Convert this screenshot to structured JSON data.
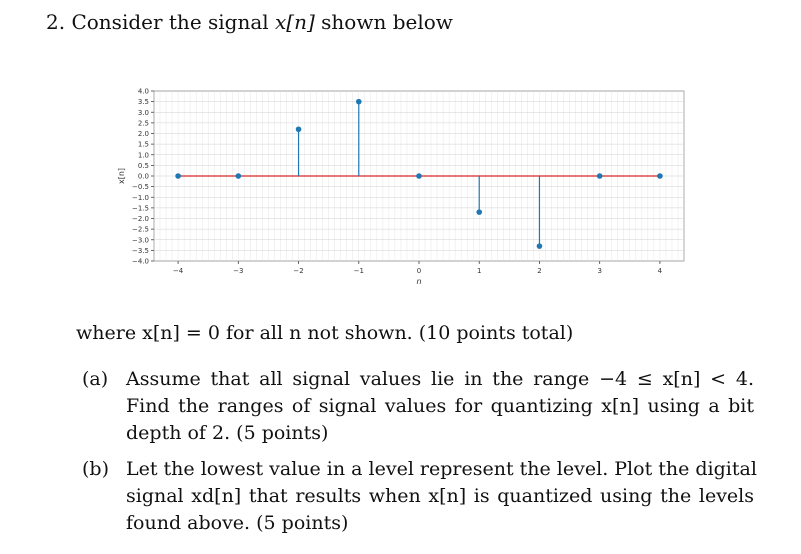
{
  "problem": {
    "number": "2.",
    "intro_before": "Consider the signal",
    "signal_symbol": "x[n]",
    "intro_after": "shown below"
  },
  "chart_data": {
    "type": "stem",
    "x": [
      -4,
      -3,
      -2,
      -1,
      0,
      1,
      2,
      3,
      4
    ],
    "y": [
      0,
      0,
      2.2,
      3.5,
      0,
      -1.7,
      -3.3,
      0,
      0
    ],
    "xlabel": "n",
    "ylabel": "x[n]",
    "xlim": [
      -4.4,
      4.4
    ],
    "ylim": [
      -4.0,
      4.0
    ],
    "xticks": [
      "−4",
      "−3",
      "−2",
      "−1",
      "0",
      "1",
      "2",
      "3",
      "4"
    ],
    "yticks": [
      "4.0",
      "3.5",
      "3.0",
      "2.5",
      "2.0",
      "1.5",
      "1.0",
      "0.5",
      "0.0",
      "−0.5",
      "−1.0",
      "−1.5",
      "−2.0",
      "−2.5",
      "−3.0",
      "−3.5",
      "−4.0"
    ],
    "grid": true,
    "stem_color": "#1f77b4",
    "baseline_color": "#d62728"
  },
  "note": "where x[n] = 0 for all n not shown. (10 points total)",
  "part_a": {
    "label": "(a)",
    "lines": [
      "Assume that all signal values lie in the range −4 ≤ x[n] < 4.",
      "Find the ranges of signal values for quantizing x[n] using a bit",
      "depth of 2. (5 points)"
    ]
  },
  "part_b": {
    "label": "(b)",
    "lines": [
      "Let the lowest value in a level represent the level. Plot the digital",
      "signal xd[n] that results when x[n] is quantized using the levels",
      "found above. (5 points)"
    ]
  }
}
